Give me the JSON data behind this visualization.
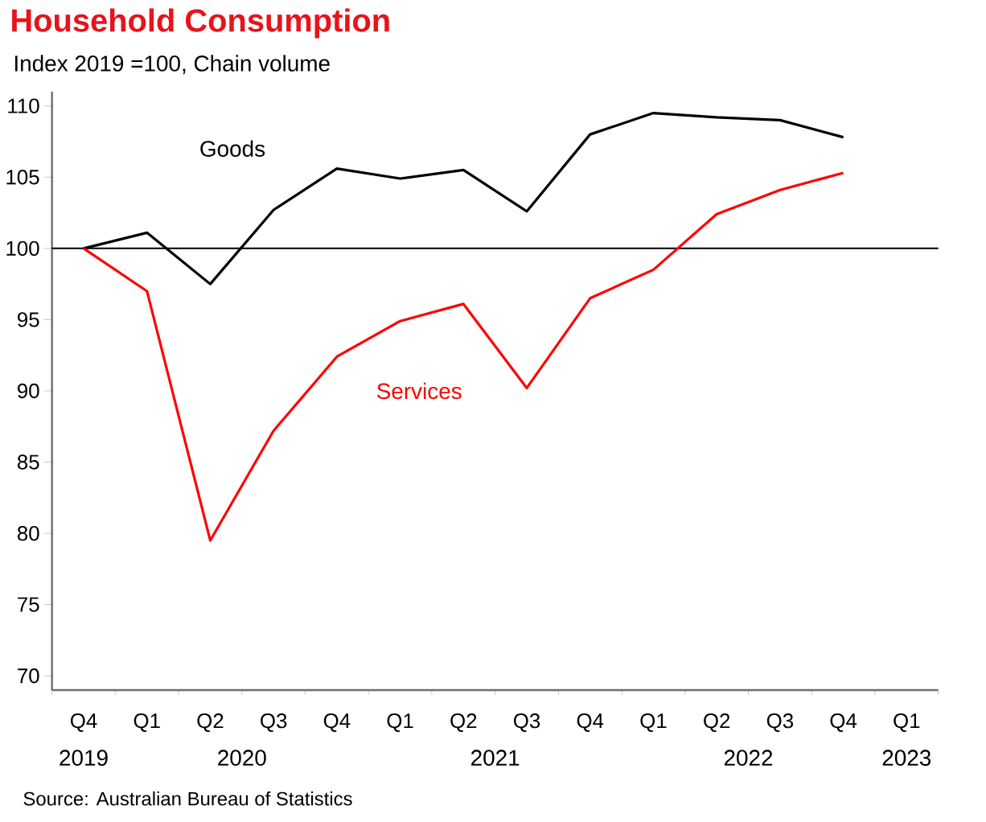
{
  "chart_data": {
    "type": "line",
    "title": "Household Consumption",
    "subtitle": "Index 2019 =100, Chain volume",
    "categories": [
      "Q4",
      "Q1",
      "Q2",
      "Q3",
      "Q4",
      "Q1",
      "Q2",
      "Q3",
      "Q4",
      "Q1",
      "Q2",
      "Q3",
      "Q4",
      "Q1"
    ],
    "series": [
      {
        "name": "Goods",
        "color": "#000000",
        "values": [
          100,
          101.1,
          97.5,
          102.7,
          105.6,
          104.9,
          105.5,
          102.6,
          108.0,
          109.5,
          109.2,
          109.0,
          107.8,
          null
        ]
      },
      {
        "name": "Services",
        "color": "#ff0000",
        "values": [
          100,
          97.0,
          79.5,
          87.2,
          92.4,
          94.9,
          96.1,
          90.2,
          96.5,
          98.5,
          102.4,
          104.1,
          105.3,
          null
        ]
      }
    ],
    "ylim": [
      69,
      111
    ],
    "yticks": [
      70,
      75,
      80,
      85,
      90,
      95,
      100,
      105,
      110
    ],
    "ref_lines": [
      {
        "axis": "y",
        "value": 100,
        "color": "#000000"
      }
    ],
    "annotations": [
      "2019",
      "2020",
      "2021",
      "2022",
      "2023",
      "Source: Australian Bureau of Statistics"
    ],
    "grid": false,
    "marker": "none",
    "line_style": "solid"
  }
}
